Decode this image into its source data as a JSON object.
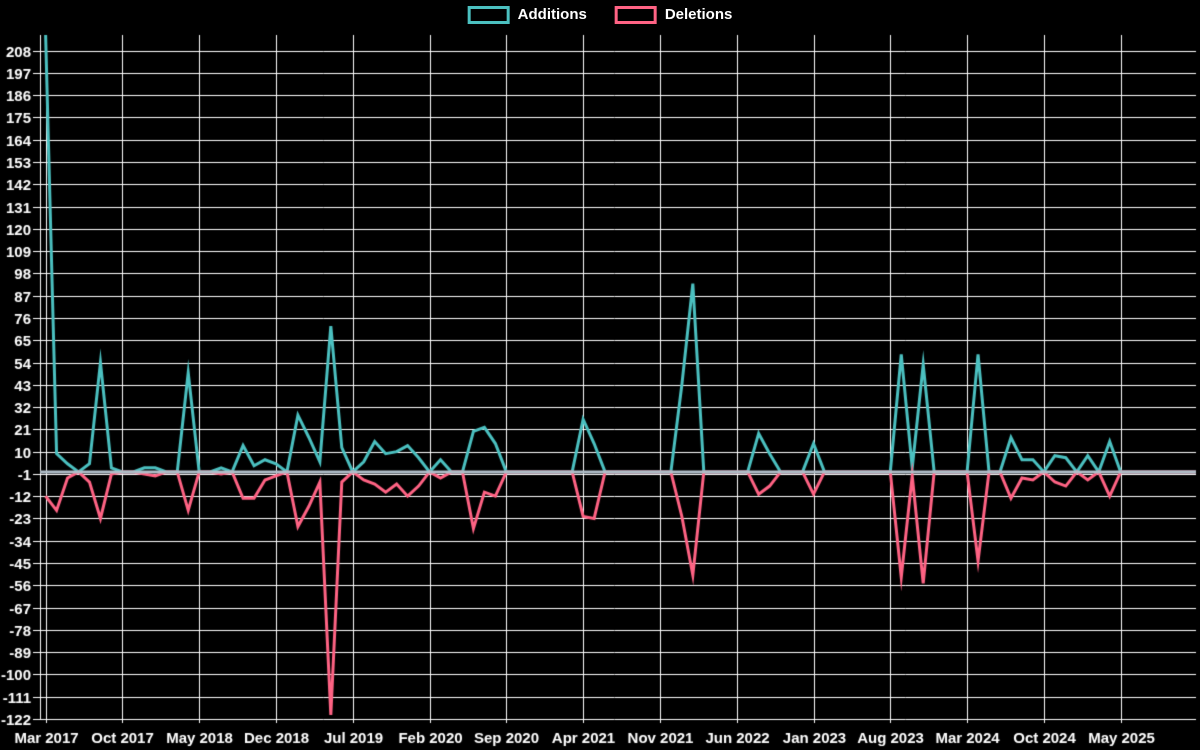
{
  "legend": {
    "additions_label": "Additions",
    "deletions_label": "Deletions"
  },
  "colors": {
    "background": "#000000",
    "additions": "#4bc0c0",
    "deletions": "#ff6384",
    "grid": "#ffffff",
    "zero_line": "#b0bec8",
    "text": "#ffffff"
  },
  "chart_data": {
    "type": "line",
    "title": "",
    "xlabel": "",
    "ylabel": "",
    "legend_position": "top-center",
    "grid": true,
    "ylim": [
      -122,
      216
    ],
    "y_ticks": [
      208,
      197,
      186,
      175,
      164,
      153,
      142,
      131,
      120,
      109,
      98,
      87,
      76,
      65,
      54,
      43,
      32,
      21,
      10,
      -1,
      -12,
      -23,
      -34,
      -45,
      -56,
      -67,
      -78,
      -89,
      -100,
      -111,
      -122
    ],
    "x_tick_labels": [
      "Mar 2017",
      "Oct 2017",
      "May 2018",
      "Dec 2018",
      "Jul 2019",
      "Feb 2020",
      "Sep 2020",
      "Apr 2021",
      "Nov 2021",
      "Jun 2022",
      "Jan 2023",
      "Aug 2023",
      "Mar 2024",
      "Oct 2024",
      "May 2025"
    ],
    "x_tick_every_n_months": 7,
    "categories": [
      "Mar 2017",
      "Apr 2017",
      "May 2017",
      "Jun 2017",
      "Jul 2017",
      "Aug 2017",
      "Sep 2017",
      "Oct 2017",
      "Nov 2017",
      "Dec 2017",
      "Jan 2018",
      "Feb 2018",
      "Mar 2018",
      "Apr 2018",
      "May 2018",
      "Jun 2018",
      "Jul 2018",
      "Aug 2018",
      "Sep 2018",
      "Oct 2018",
      "Nov 2018",
      "Dec 2018",
      "Jan 2019",
      "Feb 2019",
      "Mar 2019",
      "Apr 2019",
      "May 2019",
      "Jun 2019",
      "Jul 2019",
      "Aug 2019",
      "Sep 2019",
      "Oct 2019",
      "Nov 2019",
      "Dec 2019",
      "Jan 2020",
      "Feb 2020",
      "Mar 2020",
      "Apr 2020",
      "May 2020",
      "Jun 2020",
      "Jul 2020",
      "Aug 2020",
      "Sep 2020",
      "Oct 2020",
      "Nov 2020",
      "Dec 2020",
      "Jan 2021",
      "Feb 2021",
      "Mar 2021",
      "Apr 2021",
      "May 2021",
      "Jun 2021",
      "Jul 2021",
      "Aug 2021",
      "Sep 2021",
      "Oct 2021",
      "Nov 2021",
      "Dec 2021",
      "Jan 2022",
      "Feb 2022",
      "Mar 2022",
      "Apr 2022",
      "May 2022",
      "Jun 2022",
      "Jul 2022",
      "Aug 2022",
      "Sep 2022",
      "Oct 2022",
      "Nov 2022",
      "Dec 2022",
      "Jan 2023",
      "Feb 2023",
      "Mar 2023",
      "Apr 2023",
      "May 2023",
      "Jun 2023",
      "Jul 2023",
      "Aug 2023",
      "Sep 2023",
      "Oct 2023",
      "Nov 2023",
      "Dec 2023",
      "Jan 2024",
      "Feb 2024",
      "Mar 2024",
      "Apr 2024",
      "May 2024",
      "Jun 2024",
      "Jul 2024",
      "Aug 2024",
      "Sep 2024",
      "Oct 2024",
      "Nov 2024",
      "Dec 2024",
      "Jan 2025",
      "Feb 2025",
      "Mar 2025",
      "Apr 2025",
      "May 2025",
      "Jun 2025",
      "Jul 2025",
      "Aug 2025",
      "Sep 2025",
      "Oct 2025",
      "Nov 2025"
    ],
    "series": [
      {
        "name": "Additions",
        "color": "#4bc0c0",
        "values": [
          216,
          9,
          4,
          0,
          4,
          54,
          2,
          0,
          0,
          2,
          2,
          0,
          0,
          49,
          0,
          0,
          2,
          0,
          13,
          3,
          6,
          4,
          0,
          28,
          17,
          5,
          72,
          12,
          0,
          5,
          15,
          9,
          10,
          13,
          7,
          0,
          6,
          0,
          0,
          20,
          22,
          14,
          0,
          0,
          0,
          0,
          0,
          0,
          0,
          26,
          14,
          0,
          0,
          0,
          0,
          0,
          0,
          0,
          43,
          93,
          0,
          0,
          0,
          0,
          0,
          19,
          9,
          0,
          0,
          0,
          14,
          0,
          0,
          0,
          0,
          0,
          0,
          0,
          58,
          2,
          53,
          0,
          0,
          0,
          0,
          58,
          0,
          0,
          17,
          6,
          6,
          0,
          8,
          7,
          0,
          8,
          0,
          15,
          0,
          0,
          0,
          0,
          0,
          0,
          0
        ]
      },
      {
        "name": "Deletions",
        "color": "#ff6384",
        "values": [
          -12,
          -19,
          -3,
          0,
          -5,
          -23,
          -1,
          0,
          0,
          -1,
          -2,
          0,
          0,
          -19,
          0,
          0,
          -1,
          0,
          -13,
          -13,
          -4,
          -2,
          0,
          -27,
          -17,
          -5,
          -120,
          -5,
          0,
          -4,
          -6,
          -10,
          -6,
          -12,
          -7,
          0,
          -3,
          0,
          0,
          -28,
          -10,
          -12,
          0,
          0,
          0,
          0,
          0,
          0,
          0,
          -22,
          -23,
          0,
          0,
          0,
          0,
          0,
          0,
          0,
          -22,
          -51,
          0,
          0,
          0,
          0,
          0,
          -11,
          -7,
          0,
          0,
          0,
          -11,
          0,
          0,
          0,
          0,
          0,
          0,
          0,
          -52,
          -2,
          -55,
          0,
          0,
          0,
          0,
          -44,
          0,
          0,
          -13,
          -3,
          -4,
          0,
          -5,
          -7,
          0,
          -4,
          0,
          -12,
          0,
          0,
          0,
          0,
          0,
          0,
          0
        ]
      }
    ]
  }
}
